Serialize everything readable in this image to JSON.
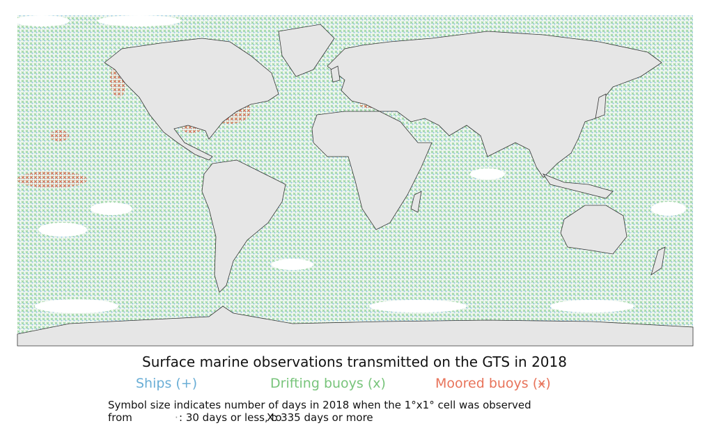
{
  "title": "Surface marine observations transmitted on the GTS in 2018",
  "legend": [
    "Ships (+)",
    "Drifting buoys (x)",
    "Moored buoys (ӿ)"
  ],
  "caption": {
    "line1": "Symbol size indicates number of days in 2018 when the 1°x1° cell was observed",
    "from": "from",
    "small": ": 30 days or less, to",
    "large": "X: 335 days or more"
  }
}
